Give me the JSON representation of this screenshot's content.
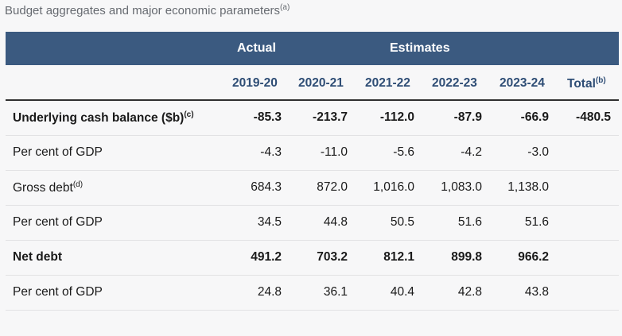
{
  "caption": {
    "text": "Budget aggregates and major economic parameters",
    "sup": "(a)"
  },
  "header": {
    "actual": "Actual",
    "estimates": "Estimates"
  },
  "years": [
    "2019-20",
    "2020-21",
    "2021-22",
    "2022-23",
    "2023-24"
  ],
  "total": {
    "label": "Total",
    "sup": "(b)"
  },
  "rows": [
    {
      "label": "Underlying cash balance ($b)",
      "sup": "(c)",
      "bold": true,
      "values": [
        "-85.3",
        "-213.7",
        "-112.0",
        "-87.9",
        "-66.9"
      ],
      "total": "-480.5"
    },
    {
      "label": "Per cent of GDP",
      "sup": "",
      "bold": false,
      "values": [
        "-4.3",
        "-11.0",
        "-5.6",
        "-4.2",
        "-3.0"
      ],
      "total": ""
    },
    {
      "label": "Gross debt",
      "sup": "(d)",
      "bold": false,
      "values": [
        "684.3",
        "872.0",
        "1,016.0",
        "1,083.0",
        "1,138.0"
      ],
      "total": ""
    },
    {
      "label": "Per cent of GDP",
      "sup": "",
      "bold": false,
      "values": [
        "34.5",
        "44.8",
        "50.5",
        "51.6",
        "51.6"
      ],
      "total": ""
    },
    {
      "label": "Net debt",
      "sup": "",
      "bold": true,
      "values": [
        "491.2",
        "703.2",
        "812.1",
        "899.8",
        "966.2"
      ],
      "total": ""
    },
    {
      "label": "Per cent of GDP",
      "sup": "",
      "bold": false,
      "values": [
        "24.8",
        "36.1",
        "40.4",
        "42.8",
        "43.8"
      ],
      "total": ""
    }
  ]
}
